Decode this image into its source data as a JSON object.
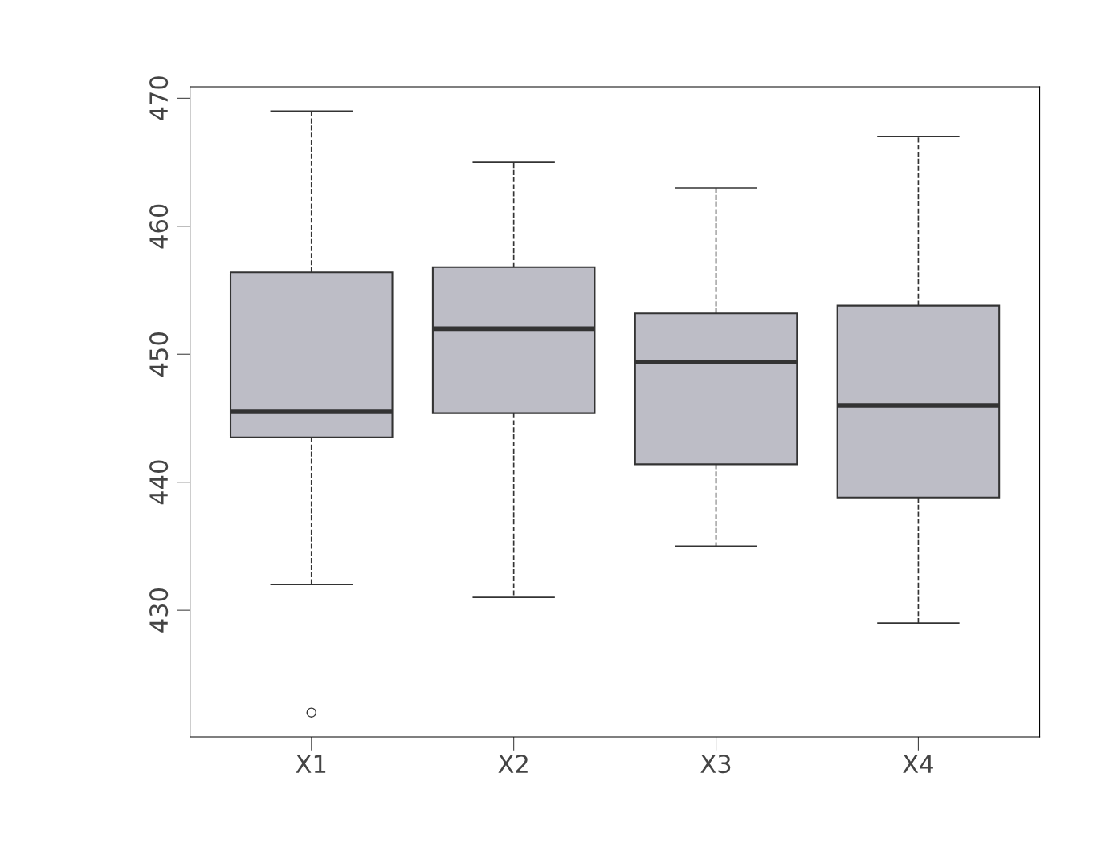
{
  "chart_data": {
    "type": "box",
    "categories": [
      "X1",
      "X2",
      "X3",
      "X4"
    ],
    "boxes": [
      {
        "low": 432,
        "q1": 443.5,
        "median": 445.5,
        "q3": 456.4,
        "high": 469,
        "outliers": [
          422
        ]
      },
      {
        "low": 431,
        "q1": 445.4,
        "median": 452,
        "q3": 456.8,
        "high": 465
      },
      {
        "low": 435,
        "q1": 441.4,
        "median": 449.4,
        "q3": 453.2,
        "high": 463
      },
      {
        "low": 429,
        "q1": 438.8,
        "median": 446,
        "q3": 453.8,
        "high": 467
      }
    ],
    "color": "#bdbdc6",
    "ylim": [
      420.1,
      470.9
    ],
    "yticks": [
      430,
      440,
      450,
      460,
      470
    ],
    "grid": false
  }
}
